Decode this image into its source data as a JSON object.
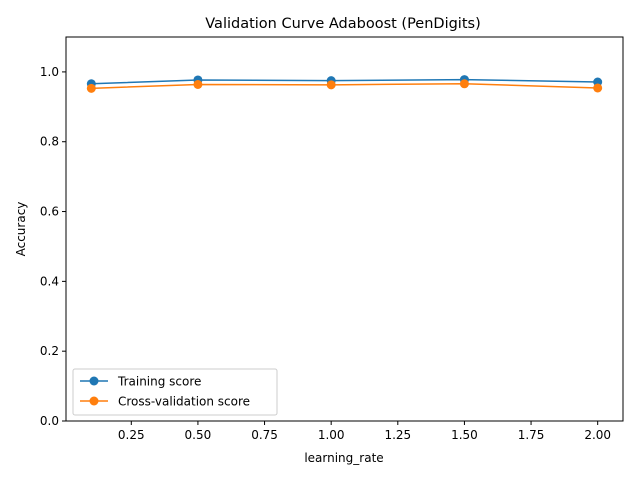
{
  "chart_data": {
    "type": "line",
    "title": "Validation Curve Adaboost (PenDigits)",
    "xlabel": "learning_rate",
    "ylabel": "Accuracy",
    "x": [
      0.1,
      0.5,
      1.0,
      1.5,
      2.0
    ],
    "xlim": [
      0.005,
      2.095
    ],
    "ylim": [
      0.0,
      1.1
    ],
    "xticks": [
      0.25,
      0.5,
      0.75,
      1.0,
      1.25,
      1.5,
      1.75,
      2.0
    ],
    "xtick_labels": [
      "0.25",
      "0.50",
      "0.75",
      "1.00",
      "1.25",
      "1.50",
      "1.75",
      "2.00"
    ],
    "yticks": [
      0.0,
      0.2,
      0.4,
      0.6,
      0.8,
      1.0
    ],
    "ytick_labels": [
      "0.0",
      "0.2",
      "0.4",
      "0.6",
      "0.8",
      "1.0"
    ],
    "grid": false,
    "legend_position": "lower-left",
    "series": [
      {
        "name": "Training score",
        "color": "#1f77b4",
        "marker": "circle",
        "values": [
          0.966,
          0.977,
          0.975,
          0.978,
          0.971
        ]
      },
      {
        "name": "Cross-validation score",
        "color": "#ff7f0e",
        "marker": "circle",
        "values": [
          0.953,
          0.964,
          0.963,
          0.966,
          0.954
        ]
      }
    ]
  }
}
